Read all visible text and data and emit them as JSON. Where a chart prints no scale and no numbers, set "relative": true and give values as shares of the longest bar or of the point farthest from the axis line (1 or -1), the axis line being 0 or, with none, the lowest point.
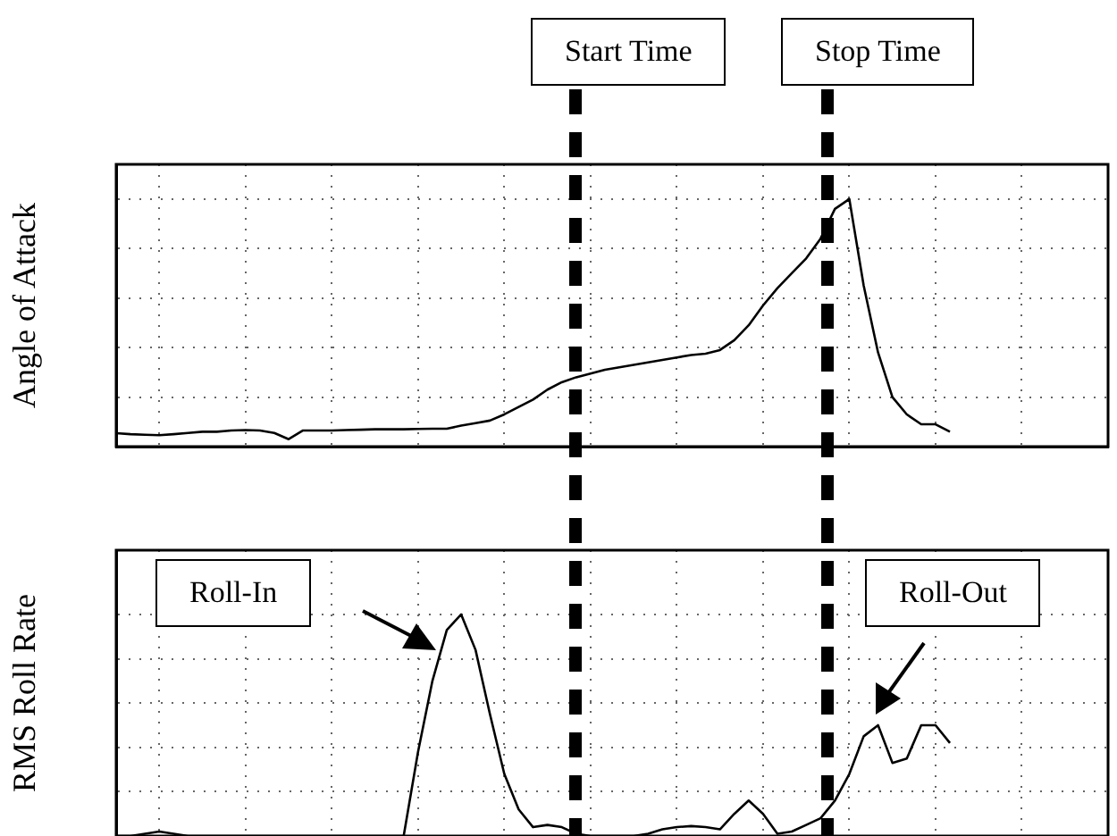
{
  "chart_data": [
    {
      "type": "line",
      "ylabel": "Angle of Attack",
      "relative": true,
      "grid": true,
      "tick_labels": false,
      "legend": false,
      "marker": "none",
      "categories": [
        null,
        null,
        null,
        null,
        null,
        null,
        null,
        null,
        null,
        null,
        null,
        null,
        null,
        null,
        null,
        null,
        null,
        null,
        null,
        null,
        null,
        null,
        null,
        null,
        null,
        null,
        null,
        null,
        null,
        null,
        null,
        null,
        null,
        null,
        null,
        null,
        null,
        null,
        null,
        null,
        null,
        null,
        null,
        null,
        null,
        null,
        null,
        null,
        null,
        null,
        null,
        null,
        null,
        null,
        null,
        null,
        null,
        null,
        null
      ],
      "series": [
        {
          "color": "#000000",
          "values": [
            0.054,
            0.05,
            0.048,
            0.046,
            0.05,
            0.055,
            0.06,
            0.06,
            0.065,
            0.067,
            0.065,
            0.055,
            0.03,
            0.065,
            0.065,
            0.065,
            0.067,
            0.068,
            0.07,
            0.07,
            0.07,
            0.071,
            0.072,
            0.072,
            0.085,
            0.095,
            0.105,
            0.13,
            0.16,
            0.19,
            0.23,
            0.26,
            0.28,
            0.295,
            0.31,
            0.32,
            0.33,
            0.34,
            0.35,
            0.36,
            0.37,
            0.375,
            0.39,
            0.43,
            0.49,
            0.57,
            0.64,
            0.7,
            0.76,
            0.84,
            0.96,
            1,
            0.65,
            0.38,
            0.2,
            0.13,
            0.09,
            0.09,
            0.06
          ]
        }
      ],
      "annotations": [
        "Start Time",
        "Stop Time"
      ]
    },
    {
      "type": "line",
      "ylabel": "RMS Roll Rate",
      "relative": true,
      "grid": true,
      "tick_labels": false,
      "legend": false,
      "marker": "none",
      "categories": [
        null,
        null,
        null,
        null,
        null,
        null,
        null,
        null,
        null,
        null,
        null,
        null,
        null,
        null,
        null,
        null,
        null,
        null,
        null,
        null,
        null,
        null,
        null,
        null,
        null,
        null,
        null,
        null,
        null,
        null,
        null,
        null,
        null,
        null,
        null,
        null,
        null,
        null,
        null,
        null,
        null,
        null,
        null,
        null,
        null,
        null,
        null,
        null,
        null,
        null,
        null,
        null,
        null,
        null,
        null,
        null,
        null,
        null,
        null
      ],
      "series": [
        {
          "color": "#000000",
          "values": [
            0,
            0,
            0.01,
            0.02,
            0.01,
            0,
            0,
            0,
            0,
            0,
            0,
            0,
            0,
            0,
            0,
            0,
            0,
            0,
            0,
            0,
            0,
            0.38,
            0.7,
            0.93,
            1,
            0.84,
            0.55,
            0.28,
            0.12,
            0.04,
            0.05,
            0.04,
            0.01,
            0,
            0,
            0,
            0,
            0.01,
            0.03,
            0.04,
            0.045,
            0.04,
            0.03,
            0.1,
            0.16,
            0.1,
            0.01,
            0.02,
            0.05,
            0.08,
            0.16,
            0.28,
            0.45,
            0.5,
            0.33,
            0.35,
            0.5,
            0.5,
            0.42
          ]
        }
      ],
      "annotations": [
        "Roll-In",
        "Roll-Out"
      ]
    }
  ]
}
